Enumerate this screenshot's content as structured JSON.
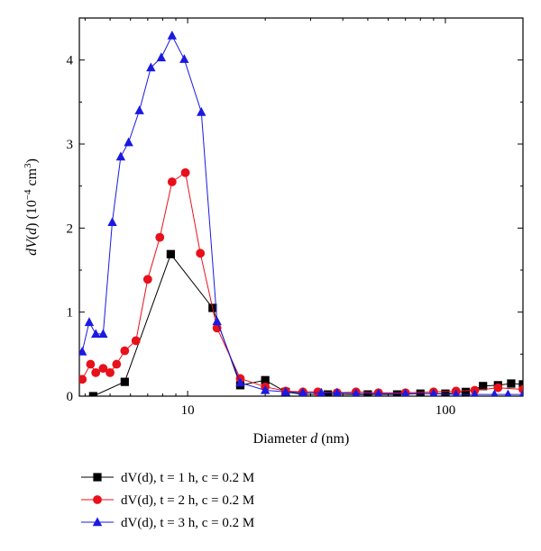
{
  "chart_data": {
    "type": "line",
    "x_scale": "log",
    "xlim": [
      3.8,
      200
    ],
    "ylim": [
      0,
      4.5
    ],
    "xlabel": "Diameter d (nm)",
    "ylabel": "dV(d) (10−4 cm3)",
    "x_ticks": [
      10,
      100
    ],
    "x_tick_labels": [
      "10",
      "100"
    ],
    "y_ticks": [
      0,
      1,
      2,
      3,
      4
    ],
    "y_tick_labels": [
      "0",
      "1",
      "2",
      "3",
      "4"
    ],
    "grid": false,
    "legend_position": "bottom-left, below plot",
    "series": [
      {
        "name": "dV(d), t = 1 h, c = 0.2 M",
        "color": "#000000",
        "marker": "square",
        "x": [
          4.3,
          5.7,
          8.6,
          12.5,
          16.0,
          20.0,
          24.0,
          28.0,
          35.0,
          50.0,
          65.0,
          80.0,
          100.0,
          120.0,
          140.0,
          160.0,
          180.0,
          200.0
        ],
        "y": [
          0.0,
          0.17,
          1.69,
          1.05,
          0.13,
          0.19,
          0.05,
          0.02,
          0.02,
          0.02,
          0.02,
          0.03,
          0.03,
          0.05,
          0.12,
          0.13,
          0.15,
          0.14
        ]
      },
      {
        "name": "dV(d), t = 2 h, c = 0.2 M",
        "color": "#e8101a",
        "marker": "circle",
        "x": [
          3.9,
          4.2,
          4.4,
          4.7,
          5.0,
          5.3,
          5.7,
          6.3,
          7.0,
          7.8,
          8.7,
          9.8,
          11.2,
          13.0,
          16.0,
          20.0,
          24.0,
          28.0,
          32.0,
          38.0,
          45.0,
          55.0,
          70.0,
          90.0,
          110.0,
          130.0,
          160.0,
          200.0
        ],
        "y": [
          0.2,
          0.38,
          0.28,
          0.33,
          0.28,
          0.38,
          0.54,
          0.66,
          1.39,
          1.89,
          2.55,
          2.66,
          1.7,
          0.81,
          0.21,
          0.11,
          0.06,
          0.05,
          0.05,
          0.04,
          0.05,
          0.04,
          0.04,
          0.05,
          0.06,
          0.07,
          0.1,
          0.08
        ]
      },
      {
        "name": "dV(d), t = 3 h, c = 0.2 M",
        "color": "#1a1ae0",
        "marker": "triangle",
        "x": [
          3.9,
          4.15,
          4.4,
          4.7,
          5.1,
          5.5,
          5.9,
          6.5,
          7.2,
          7.9,
          8.7,
          9.7,
          11.3,
          13.0,
          16.0,
          20.0,
          24.0,
          28.0,
          33.0,
          38.0,
          45.0,
          55.0,
          70.0,
          90.0,
          110.0,
          130.0,
          155.0,
          175.0,
          200.0
        ],
        "y": [
          0.53,
          0.88,
          0.74,
          0.74,
          2.07,
          2.85,
          3.02,
          3.4,
          3.91,
          4.03,
          4.29,
          4.01,
          3.38,
          0.89,
          0.16,
          0.07,
          0.05,
          0.04,
          0.04,
          0.04,
          0.03,
          0.03,
          0.03,
          0.03,
          0.02,
          0.02,
          0.02,
          0.02,
          0.02
        ]
      }
    ]
  }
}
